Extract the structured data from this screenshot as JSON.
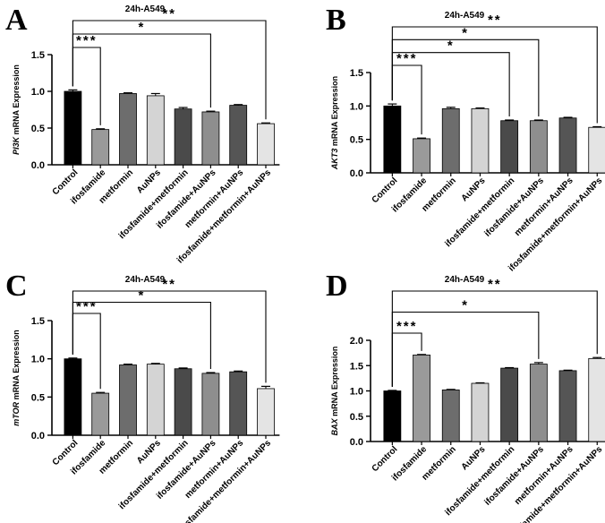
{
  "chart_data": [
    {
      "panel": "A",
      "type": "bar",
      "title": "24h-A549",
      "ylabel_gene": "PI3K",
      "ylabel_rest": "mRNA Expression",
      "ylim": [
        0,
        1.5
      ],
      "yticks": [
        "0.0",
        "0.5",
        "1.0",
        "1.5"
      ],
      "categories": [
        "Control",
        "ifosfamide",
        "metformin",
        "AuNPs",
        "ifosfamide+metformin",
        "ifosfamide+AuNPs",
        "metformin+AuNPs",
        "ifosfamide+metformin+AuNPs"
      ],
      "values": [
        1.0,
        0.48,
        0.97,
        0.94,
        0.76,
        0.72,
        0.81,
        0.56
      ],
      "errors": [
        0.02,
        0.01,
        0.01,
        0.03,
        0.02,
        0.01,
        0.01,
        0.01
      ],
      "colors": [
        "#000000",
        "#9a9a9a",
        "#6d6d6d",
        "#d4d4d4",
        "#4a4a4a",
        "#8e8e8e",
        "#555555",
        "#e4e4e4"
      ],
      "significance": [
        {
          "from": 0,
          "to": 1,
          "label": "***"
        },
        {
          "from": 0,
          "to": 5,
          "label": "*"
        },
        {
          "from": 0,
          "to": 7,
          "label": "**"
        }
      ]
    },
    {
      "panel": "B",
      "type": "bar",
      "title": "24h-A549",
      "ylabel_gene": "AKT3",
      "ylabel_rest": "mRNA Expression",
      "ylim": [
        0,
        1.5
      ],
      "yticks": [
        "0.0",
        "0.5",
        "1.0",
        "1.5"
      ],
      "categories": [
        "Control",
        "ifosfamide",
        "metformin",
        "AuNPs",
        "ifosfamide+metformin",
        "ifosfamide+AuNPs",
        "metformin+AuNPs",
        "ifosfamide+metformin+AuNPs"
      ],
      "values": [
        1.0,
        0.51,
        0.96,
        0.96,
        0.78,
        0.78,
        0.82,
        0.68
      ],
      "errors": [
        0.03,
        0.01,
        0.02,
        0.01,
        0.01,
        0.01,
        0.01,
        0.01
      ],
      "colors": [
        "#000000",
        "#9a9a9a",
        "#6d6d6d",
        "#d4d4d4",
        "#4a4a4a",
        "#8e8e8e",
        "#555555",
        "#e4e4e4"
      ],
      "significance": [
        {
          "from": 0,
          "to": 1,
          "label": "***"
        },
        {
          "from": 0,
          "to": 4,
          "label": "*"
        },
        {
          "from": 0,
          "to": 5,
          "label": "*"
        },
        {
          "from": 0,
          "to": 7,
          "label": "**"
        }
      ]
    },
    {
      "panel": "C",
      "type": "bar",
      "title": "24h-A549",
      "ylabel_gene": "mTOR",
      "ylabel_rest": "mRNA Expression",
      "ylim": [
        0,
        1.5
      ],
      "yticks": [
        "0.0",
        "0.5",
        "1.0",
        "1.5"
      ],
      "categories": [
        "Control",
        "ifosfamide",
        "metformin",
        "AuNPs",
        "ifosfamide+metformin",
        "ifosfamide+AuNPs",
        "metformin+AuNPs",
        "ifosfamide+metformin+AuNPs"
      ],
      "values": [
        1.0,
        0.55,
        0.92,
        0.93,
        0.87,
        0.81,
        0.83,
        0.61
      ],
      "errors": [
        0.01,
        0.01,
        0.01,
        0.01,
        0.01,
        0.01,
        0.01,
        0.03
      ],
      "colors": [
        "#000000",
        "#9a9a9a",
        "#6d6d6d",
        "#d4d4d4",
        "#4a4a4a",
        "#8e8e8e",
        "#555555",
        "#e4e4e4"
      ],
      "significance": [
        {
          "from": 0,
          "to": 1,
          "label": "***"
        },
        {
          "from": 0,
          "to": 5,
          "label": "*"
        },
        {
          "from": 0,
          "to": 7,
          "label": "**"
        }
      ]
    },
    {
      "panel": "D",
      "type": "bar",
      "title": "24h-A549",
      "ylabel_gene": "BAX",
      "ylabel_rest": "mRNA Expression",
      "ylim": [
        0,
        2.0
      ],
      "yticks": [
        "0.0",
        "0.5",
        "1.0",
        "1.5",
        "2.0"
      ],
      "categories": [
        "Control",
        "ifosfamide",
        "metformin",
        "AuNPs",
        "ifosfamide+metformin",
        "ifosfamide+AuNPs",
        "metformin+AuNPs",
        "ifosfamide+metformin+AuNPs"
      ],
      "values": [
        1.0,
        1.71,
        1.02,
        1.15,
        1.45,
        1.53,
        1.4,
        1.64
      ],
      "errors": [
        0.01,
        0.01,
        0.01,
        0.01,
        0.01,
        0.03,
        0.01,
        0.02
      ],
      "colors": [
        "#000000",
        "#9a9a9a",
        "#6d6d6d",
        "#d4d4d4",
        "#4a4a4a",
        "#8e8e8e",
        "#555555",
        "#e4e4e4"
      ],
      "significance": [
        {
          "from": 0,
          "to": 1,
          "label": "***"
        },
        {
          "from": 0,
          "to": 5,
          "label": "*"
        },
        {
          "from": 0,
          "to": 7,
          "label": "**"
        }
      ]
    }
  ]
}
